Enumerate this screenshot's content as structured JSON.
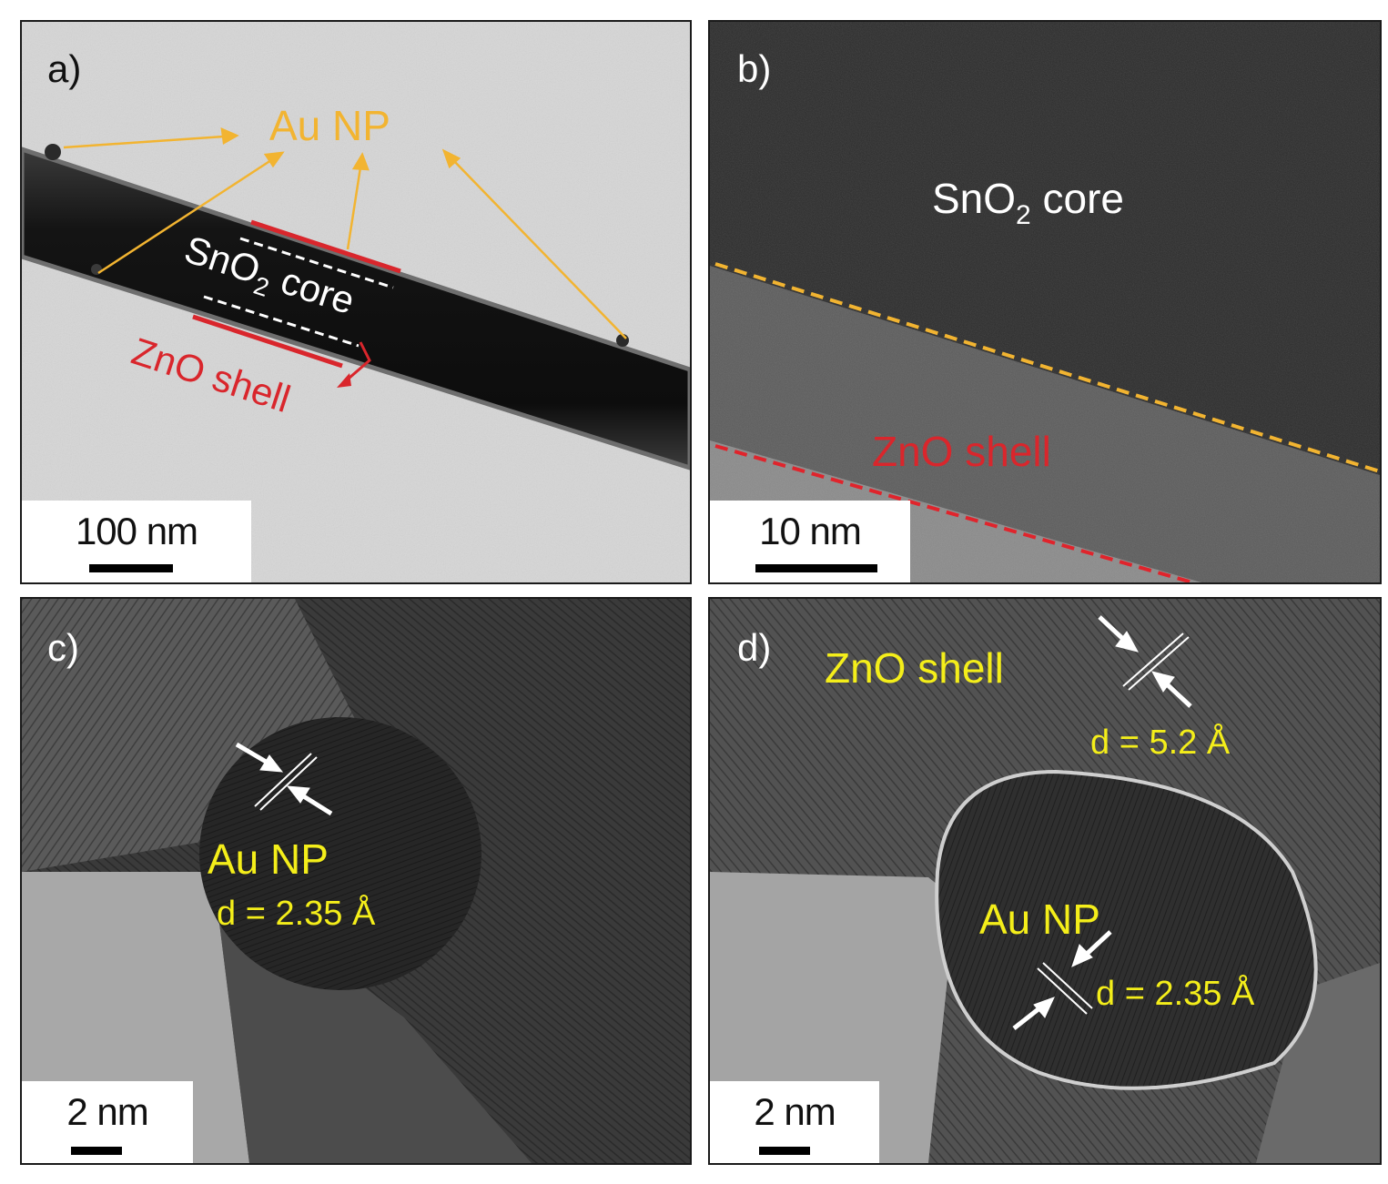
{
  "panels": {
    "a": {
      "label": "a)",
      "au_np": "Au NP",
      "core": "SnO",
      "core_sub": "2",
      "core_suffix": " core",
      "shell": "ZnO shell",
      "scale": "100 nm"
    },
    "b": {
      "label": "b)",
      "core": "SnO",
      "core_sub": "2",
      "core_suffix": " core",
      "shell": "ZnO shell",
      "scale": "10 nm"
    },
    "c": {
      "label": "c)",
      "au_np": "Au NP",
      "d_spacing": "d = 2.35 Å",
      "scale": "2 nm"
    },
    "d": {
      "label": "d)",
      "shell": "ZnO shell",
      "d_shell": "d = 5.2 Å",
      "au_np": "Au NP",
      "d_np": "d = 2.35 Å",
      "scale": "2 nm"
    }
  },
  "colors": {
    "au_label": "#f2b431",
    "shell_label": "#d9262c",
    "yellow_label": "#f4ee1a",
    "white": "#ffffff",
    "yellow_dash": "#f2b431",
    "red_dash": "#e0242c"
  }
}
